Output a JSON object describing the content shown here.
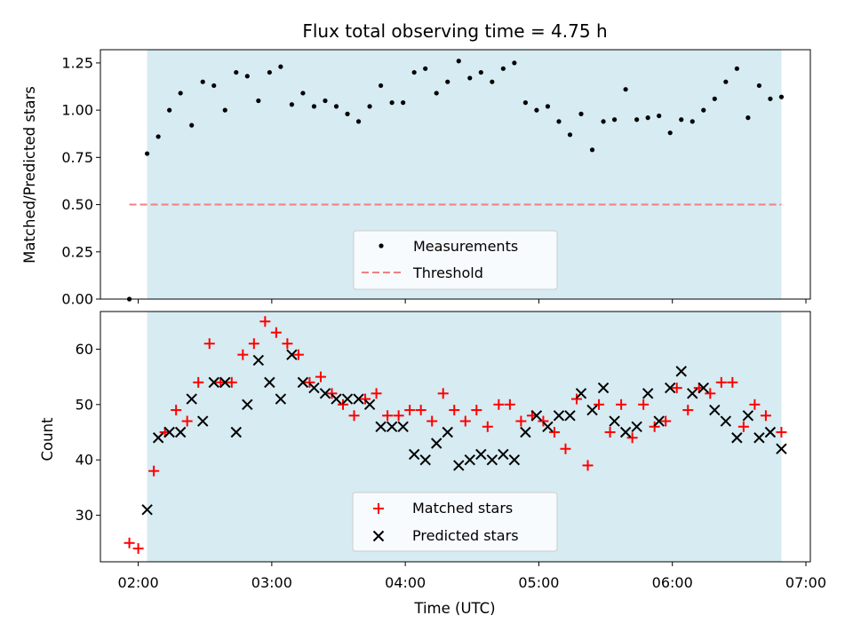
{
  "figure": {
    "title": "Flux total observing time = 4.75 h",
    "xlabel": "Time (UTC)"
  },
  "colors": {
    "observing_span": "#add8e6",
    "measurements": "#000000",
    "threshold": "#f08080",
    "matched": "#ff0000",
    "predicted": "#000000"
  },
  "chart_data": [
    {
      "type": "scatter",
      "panel": "top",
      "title": "Flux total observing time = 4.75 h",
      "ylabel": "Matched/Predicted stars",
      "xlabel": "",
      "x_unit": "minutes after 00:00 UTC",
      "xlim": [
        "01:43",
        "07:02"
      ],
      "ylim": [
        0,
        1.32
      ],
      "yticks": [
        0,
        0.25,
        0.5,
        0.75,
        1.0,
        1.25
      ],
      "ytick_labels": [
        "0.00",
        "0.25",
        "0.50",
        "0.75",
        "1.00",
        "1.25"
      ],
      "observing_span": [
        "02:04",
        "06:49"
      ],
      "legend": {
        "location": "lower center",
        "entries": [
          "Measurements",
          "Threshold"
        ]
      },
      "threshold": {
        "name": "Threshold",
        "y": 0.5,
        "x": [
          "01:56",
          "06:49"
        ],
        "style": "dashed"
      },
      "series": [
        {
          "name": "Measurements",
          "marker": "dot",
          "x": [
            "01:56",
            "02:04",
            "02:09",
            "02:14",
            "02:19",
            "02:24",
            "02:29",
            "02:34",
            "02:39",
            "02:44",
            "02:49",
            "02:54",
            "02:59",
            "03:04",
            "03:09",
            "03:14",
            "03:19",
            "03:24",
            "03:29",
            "03:34",
            "03:39",
            "03:44",
            "03:49",
            "03:54",
            "03:59",
            "04:04",
            "04:09",
            "04:14",
            "04:19",
            "04:24",
            "04:29",
            "04:34",
            "04:39",
            "04:44",
            "04:49",
            "04:54",
            "04:59",
            "05:04",
            "05:09",
            "05:14",
            "05:19",
            "05:24",
            "05:29",
            "05:34",
            "05:39",
            "05:44",
            "05:49",
            "05:54",
            "05:59",
            "06:04",
            "06:09",
            "06:14",
            "06:19",
            "06:24",
            "06:29",
            "06:34",
            "06:39",
            "06:44",
            "06:49"
          ],
          "y": [
            0.0,
            0.77,
            0.86,
            1.0,
            1.09,
            0.92,
            1.15,
            1.13,
            1.0,
            1.2,
            1.18,
            1.05,
            1.2,
            1.23,
            1.03,
            1.09,
            1.02,
            1.05,
            1.02,
            0.98,
            0.94,
            1.02,
            1.13,
            1.04,
            1.04,
            1.2,
            1.22,
            1.09,
            1.15,
            1.26,
            1.17,
            1.2,
            1.15,
            1.22,
            1.25,
            1.04,
            1.0,
            1.02,
            0.94,
            0.87,
            0.98,
            0.79,
            0.94,
            0.95,
            1.11,
            0.95,
            0.96,
            0.97,
            0.88,
            0.95,
            0.94,
            1.0,
            1.06,
            1.15,
            1.22,
            0.96,
            1.13,
            1.06,
            1.07
          ]
        }
      ]
    },
    {
      "type": "scatter",
      "panel": "bottom",
      "title": "",
      "ylabel": "Count",
      "xlabel": "Time (UTC)",
      "xlim": [
        "01:43",
        "07:02"
      ],
      "xticks": [
        "02:00",
        "03:00",
        "04:00",
        "05:00",
        "06:00",
        "07:00"
      ],
      "ylim": [
        21.6,
        66.8
      ],
      "yticks": [
        30,
        40,
        50,
        60
      ],
      "ytick_labels": [
        "30",
        "40",
        "50",
        "60"
      ],
      "observing_span": [
        "02:04",
        "06:49"
      ],
      "legend": {
        "location": "lower center",
        "entries": [
          "Matched stars",
          "Predicted stars"
        ]
      },
      "series": [
        {
          "name": "Matched stars",
          "marker": "plus",
          "x": [
            "01:56",
            "02:00",
            "02:07",
            "02:12",
            "02:17",
            "02:22",
            "02:27",
            "02:32",
            "02:37",
            "02:42",
            "02:47",
            "02:52",
            "02:57",
            "03:02",
            "03:07",
            "03:12",
            "03:17",
            "03:22",
            "03:27",
            "03:32",
            "03:37",
            "03:42",
            "03:47",
            "03:52",
            "03:57",
            "04:02",
            "04:07",
            "04:12",
            "04:17",
            "04:22",
            "04:27",
            "04:32",
            "04:37",
            "04:42",
            "04:47",
            "04:52",
            "04:57",
            "05:02",
            "05:07",
            "05:12",
            "05:17",
            "05:22",
            "05:27",
            "05:32",
            "05:37",
            "05:42",
            "05:47",
            "05:52",
            "05:57",
            "06:02",
            "06:07",
            "06:12",
            "06:17",
            "06:22",
            "06:27",
            "06:32",
            "06:37",
            "06:42",
            "06:49"
          ],
          "y": [
            25,
            24,
            38,
            45,
            49,
            47,
            54,
            61,
            54,
            54,
            59,
            61,
            65,
            63,
            61,
            59,
            54,
            55,
            52,
            50,
            48,
            51,
            52,
            48,
            48,
            49,
            49,
            47,
            52,
            49,
            47,
            49,
            46,
            50,
            50,
            47,
            48,
            47,
            45,
            42,
            51,
            39,
            50,
            45,
            50,
            44,
            50,
            46,
            47,
            53,
            49,
            53,
            52,
            54,
            54,
            46,
            50,
            48,
            45
          ]
        },
        {
          "name": "Predicted stars",
          "marker": "cross",
          "x": [
            "02:04",
            "02:09",
            "02:14",
            "02:19",
            "02:24",
            "02:29",
            "02:34",
            "02:39",
            "02:44",
            "02:49",
            "02:54",
            "02:59",
            "03:04",
            "03:09",
            "03:14",
            "03:19",
            "03:24",
            "03:29",
            "03:34",
            "03:39",
            "03:44",
            "03:49",
            "03:54",
            "03:59",
            "04:04",
            "04:09",
            "04:14",
            "04:19",
            "04:24",
            "04:29",
            "04:34",
            "04:39",
            "04:44",
            "04:49",
            "04:54",
            "04:59",
            "05:04",
            "05:09",
            "05:14",
            "05:19",
            "05:24",
            "05:29",
            "05:34",
            "05:39",
            "05:44",
            "05:49",
            "05:54",
            "05:59",
            "06:04",
            "06:09",
            "06:14",
            "06:19",
            "06:24",
            "06:29",
            "06:34",
            "06:39",
            "06:44",
            "06:49"
          ],
          "y": [
            31,
            44,
            45,
            45,
            51,
            47,
            54,
            54,
            45,
            50,
            58,
            54,
            51,
            59,
            54,
            53,
            52,
            51,
            51,
            51,
            50,
            46,
            46,
            46,
            41,
            40,
            43,
            45,
            39,
            40,
            41,
            40,
            41,
            40,
            45,
            48,
            46,
            48,
            48,
            52,
            49,
            53,
            47,
            45,
            46,
            52,
            47,
            53,
            56,
            52,
            53,
            49,
            47,
            44,
            48,
            44,
            45,
            42
          ]
        }
      ]
    }
  ]
}
